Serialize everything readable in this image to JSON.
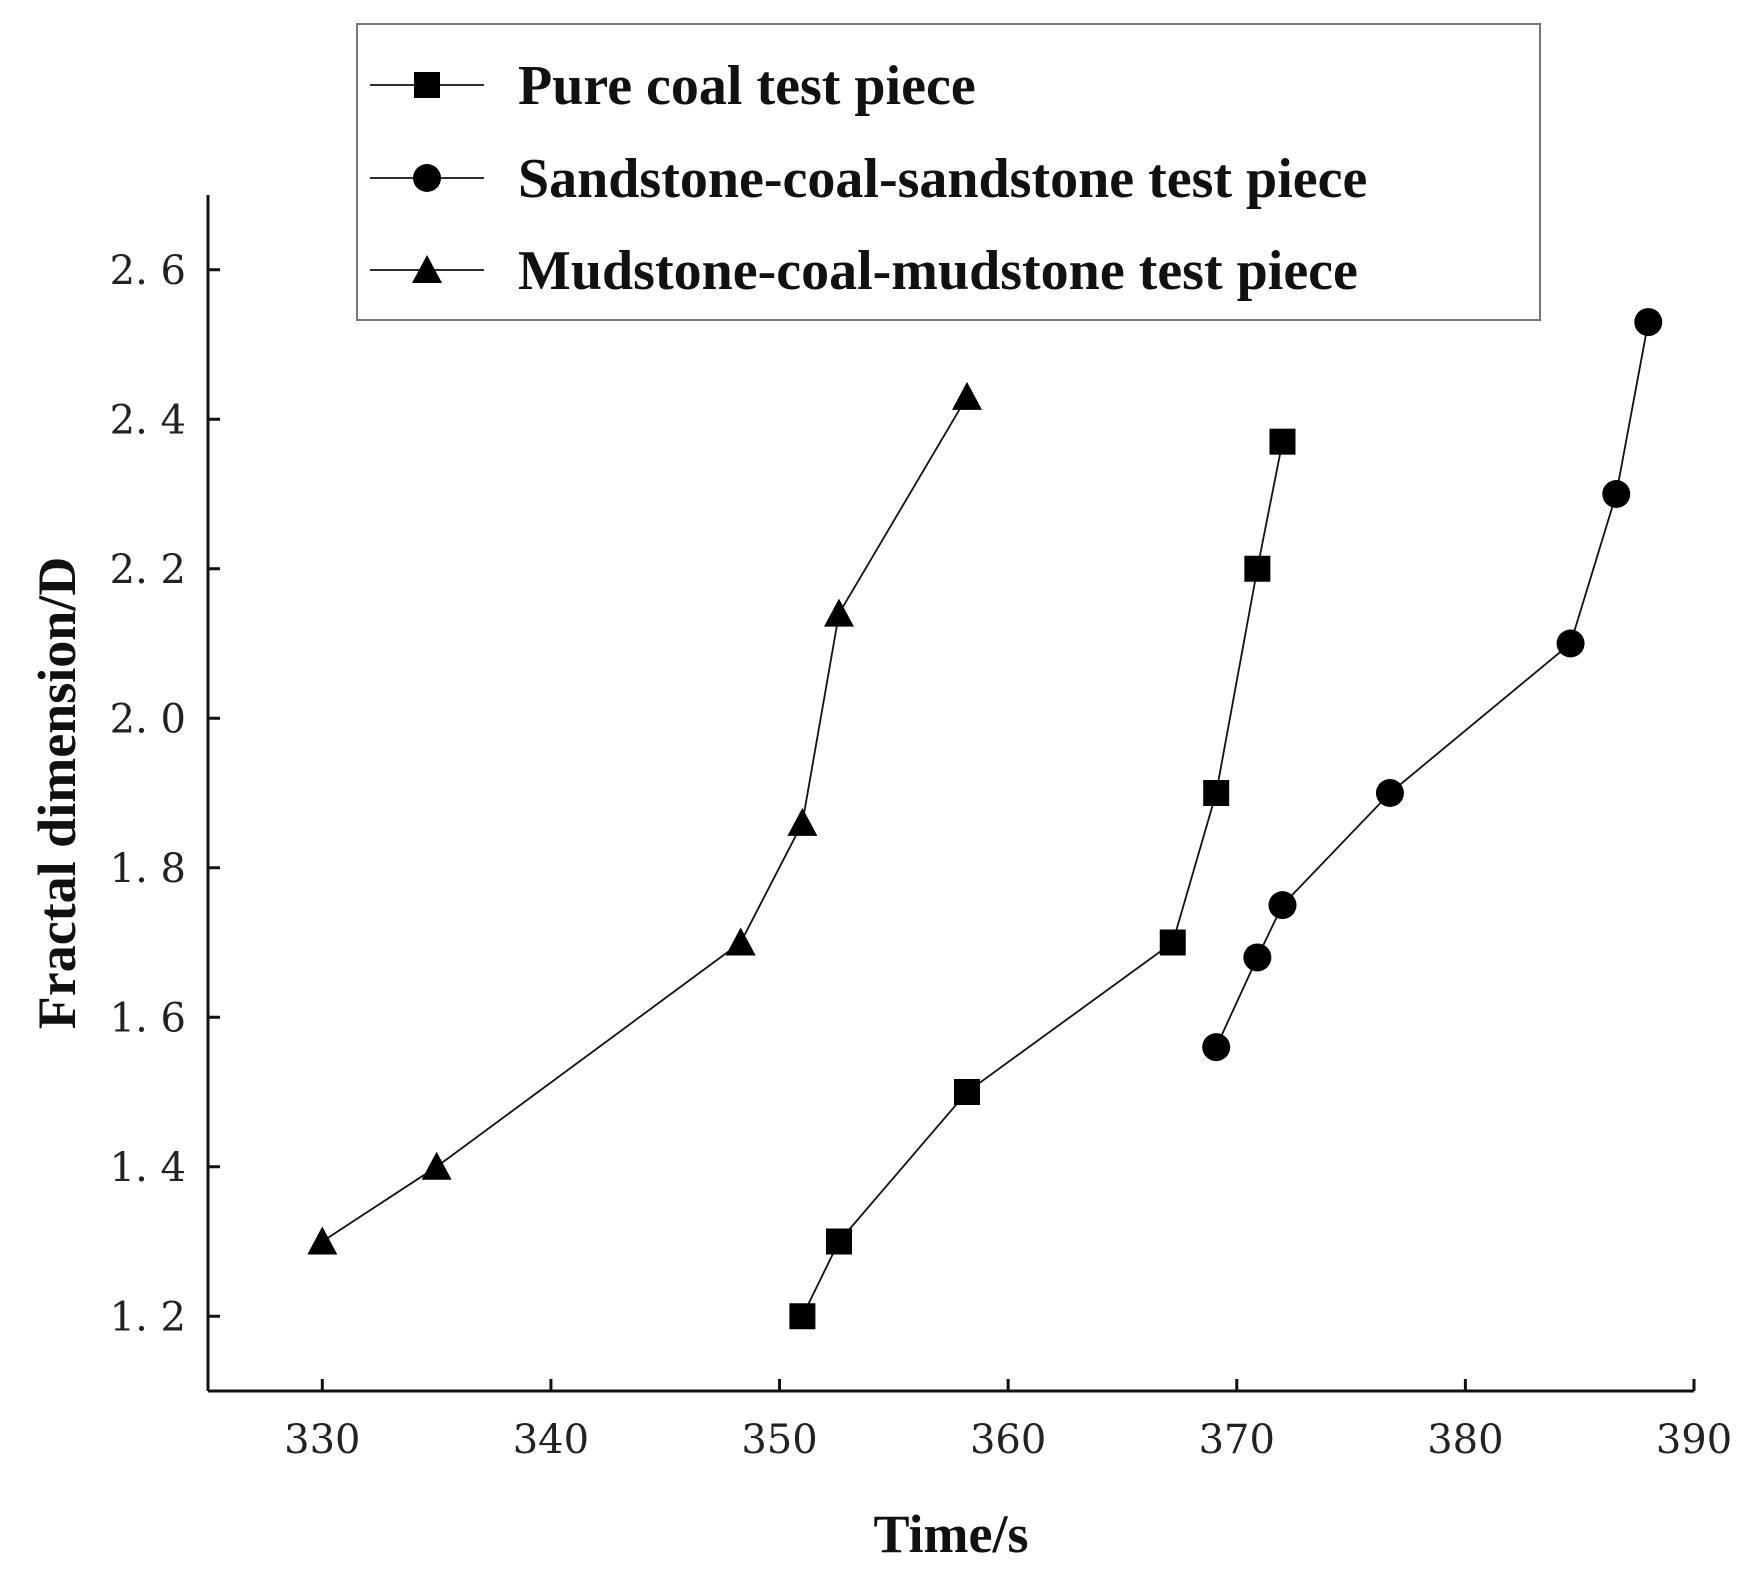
{
  "chart_data": {
    "type": "line",
    "title": "",
    "xlabel": "Time/s",
    "ylabel": "Fractal dimension/D",
    "xlim": [
      325,
      390
    ],
    "ylim": [
      1.1,
      2.7
    ],
    "xticks": [
      330,
      340,
      350,
      360,
      370,
      380,
      390
    ],
    "yticks": [
      1.2,
      1.4,
      1.6,
      1.8,
      2.0,
      2.2,
      2.4,
      2.6
    ],
    "xtick_labels": [
      "330",
      "340",
      "350",
      "360",
      "370",
      "380",
      "390"
    ],
    "ytick_labels": [
      "1. 2",
      "1. 4",
      "1. 6",
      "1. 8",
      "2. 0",
      "2. 2",
      "2. 4",
      "2. 6"
    ],
    "grid": false,
    "legend_position": "top",
    "series": [
      {
        "name": "Pure coal test piece",
        "marker": "square",
        "x": [
          351,
          352.6,
          358.2,
          367.2,
          369.1,
          370.9,
          372
        ],
        "y": [
          1.2,
          1.3,
          1.5,
          1.7,
          1.9,
          2.2,
          2.37
        ]
      },
      {
        "name": "Sandstone-coal-sandstone test piece",
        "marker": "circle",
        "x": [
          369.1,
          370.9,
          372,
          376.7,
          384.6,
          386.6,
          388
        ],
        "y": [
          1.56,
          1.68,
          1.75,
          1.9,
          2.1,
          2.3,
          2.53
        ]
      },
      {
        "name": "Mudstone-coal-mudstone test piece",
        "marker": "triangle",
        "x": [
          330,
          335,
          348.3,
          351,
          352.6,
          358.2
        ],
        "y": [
          1.3,
          1.4,
          1.7,
          1.86,
          2.14,
          2.43
        ]
      }
    ]
  }
}
